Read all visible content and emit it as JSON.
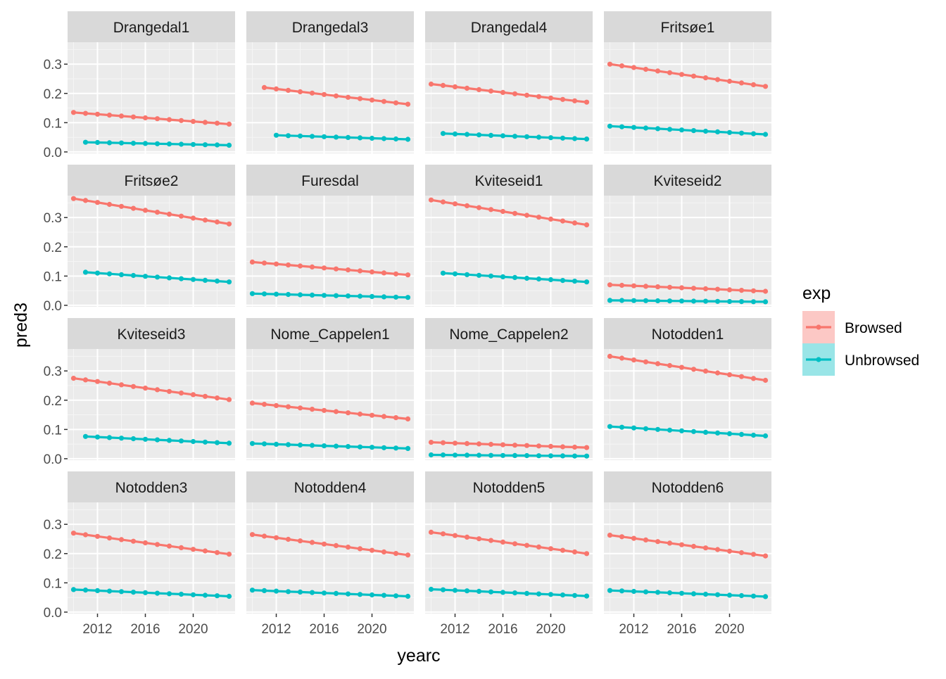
{
  "chart_data": {
    "type": "line",
    "facet_layout": "4x4 grid",
    "xlabel": "yearc",
    "ylabel": "pred3",
    "xlim": [
      2009.5,
      2023.5
    ],
    "ylim": [
      -0.005,
      0.375
    ],
    "xticks": [
      2012,
      2016,
      2020
    ],
    "yticks": [
      0.0,
      0.1,
      0.2,
      0.3
    ],
    "ytick_labels": [
      "0.0",
      "0.1",
      "0.2",
      "0.3"
    ],
    "grid": true,
    "legend": {
      "title": "exp",
      "placement": "right",
      "entries": [
        {
          "label": "Browsed",
          "color": "#F8766D"
        },
        {
          "label": "Unbrowsed",
          "color": "#00BFC4"
        }
      ]
    },
    "panel_background": "#EBEBEB",
    "strip_background": "#D9D9D9",
    "panels": [
      {
        "name": "Drangedal1",
        "series": [
          {
            "name": "Browsed",
            "x_start": 2010,
            "x_end": 2023,
            "y_start": 0.135,
            "y_end": 0.095
          },
          {
            "name": "Unbrowsed",
            "x_start": 2011,
            "x_end": 2023,
            "y_start": 0.033,
            "y_end": 0.023
          }
        ]
      },
      {
        "name": "Drangedal3",
        "series": [
          {
            "name": "Browsed",
            "x_start": 2011,
            "x_end": 2023,
            "y_start": 0.22,
            "y_end": 0.163
          },
          {
            "name": "Unbrowsed",
            "x_start": 2012,
            "x_end": 2023,
            "y_start": 0.057,
            "y_end": 0.043
          }
        ]
      },
      {
        "name": "Drangedal4",
        "series": [
          {
            "name": "Browsed",
            "x_start": 2010,
            "x_end": 2023,
            "y_start": 0.232,
            "y_end": 0.17
          },
          {
            "name": "Unbrowsed",
            "x_start": 2011,
            "x_end": 2023,
            "y_start": 0.063,
            "y_end": 0.044
          }
        ]
      },
      {
        "name": "Fritsøe1",
        "series": [
          {
            "name": "Browsed",
            "x_start": 2010,
            "x_end": 2023,
            "y_start": 0.3,
            "y_end": 0.224
          },
          {
            "name": "Unbrowsed",
            "x_start": 2010,
            "x_end": 2023,
            "y_start": 0.088,
            "y_end": 0.06
          }
        ]
      },
      {
        "name": "Fritsøe2",
        "series": [
          {
            "name": "Browsed",
            "x_start": 2010,
            "x_end": 2023,
            "y_start": 0.365,
            "y_end": 0.278
          },
          {
            "name": "Unbrowsed",
            "x_start": 2011,
            "x_end": 2023,
            "y_start": 0.113,
            "y_end": 0.08
          }
        ]
      },
      {
        "name": "Furesdal",
        "series": [
          {
            "name": "Browsed",
            "x_start": 2010,
            "x_end": 2023,
            "y_start": 0.148,
            "y_end": 0.104
          },
          {
            "name": "Unbrowsed",
            "x_start": 2010,
            "x_end": 2023,
            "y_start": 0.04,
            "y_end": 0.027
          }
        ]
      },
      {
        "name": "Kviteseid1",
        "series": [
          {
            "name": "Browsed",
            "x_start": 2010,
            "x_end": 2023,
            "y_start": 0.36,
            "y_end": 0.275
          },
          {
            "name": "Unbrowsed",
            "x_start": 2011,
            "x_end": 2023,
            "y_start": 0.11,
            "y_end": 0.08
          }
        ]
      },
      {
        "name": "Kviteseid2",
        "series": [
          {
            "name": "Browsed",
            "x_start": 2010,
            "x_end": 2023,
            "y_start": 0.07,
            "y_end": 0.048
          },
          {
            "name": "Unbrowsed",
            "x_start": 2010,
            "x_end": 2023,
            "y_start": 0.017,
            "y_end": 0.012
          }
        ]
      },
      {
        "name": "Kviteseid3",
        "series": [
          {
            "name": "Browsed",
            "x_start": 2010,
            "x_end": 2023,
            "y_start": 0.275,
            "y_end": 0.202
          },
          {
            "name": "Unbrowsed",
            "x_start": 2011,
            "x_end": 2023,
            "y_start": 0.076,
            "y_end": 0.053
          }
        ]
      },
      {
        "name": "Nome_Cappelen1",
        "series": [
          {
            "name": "Browsed",
            "x_start": 2010,
            "x_end": 2023,
            "y_start": 0.19,
            "y_end": 0.136
          },
          {
            "name": "Unbrowsed",
            "x_start": 2010,
            "x_end": 2023,
            "y_start": 0.052,
            "y_end": 0.035
          }
        ]
      },
      {
        "name": "Nome_Cappelen2",
        "series": [
          {
            "name": "Browsed",
            "x_start": 2010,
            "x_end": 2023,
            "y_start": 0.056,
            "y_end": 0.038
          },
          {
            "name": "Unbrowsed",
            "x_start": 2010,
            "x_end": 2023,
            "y_start": 0.013,
            "y_end": 0.009
          }
        ]
      },
      {
        "name": "Notodden1",
        "series": [
          {
            "name": "Browsed",
            "x_start": 2010,
            "x_end": 2023,
            "y_start": 0.35,
            "y_end": 0.268
          },
          {
            "name": "Unbrowsed",
            "x_start": 2010,
            "x_end": 2023,
            "y_start": 0.11,
            "y_end": 0.078
          }
        ]
      },
      {
        "name": "Notodden3",
        "series": [
          {
            "name": "Browsed",
            "x_start": 2010,
            "x_end": 2023,
            "y_start": 0.27,
            "y_end": 0.198
          },
          {
            "name": "Unbrowsed",
            "x_start": 2010,
            "x_end": 2023,
            "y_start": 0.077,
            "y_end": 0.054
          }
        ]
      },
      {
        "name": "Notodden4",
        "series": [
          {
            "name": "Browsed",
            "x_start": 2010,
            "x_end": 2023,
            "y_start": 0.265,
            "y_end": 0.195
          },
          {
            "name": "Unbrowsed",
            "x_start": 2010,
            "x_end": 2023,
            "y_start": 0.075,
            "y_end": 0.054
          }
        ]
      },
      {
        "name": "Notodden5",
        "series": [
          {
            "name": "Browsed",
            "x_start": 2010,
            "x_end": 2023,
            "y_start": 0.273,
            "y_end": 0.2
          },
          {
            "name": "Unbrowsed",
            "x_start": 2010,
            "x_end": 2023,
            "y_start": 0.078,
            "y_end": 0.055
          }
        ]
      },
      {
        "name": "Notodden6",
        "series": [
          {
            "name": "Browsed",
            "x_start": 2010,
            "x_end": 2023,
            "y_start": 0.263,
            "y_end": 0.192
          },
          {
            "name": "Unbrowsed",
            "x_start": 2010,
            "x_end": 2023,
            "y_start": 0.074,
            "y_end": 0.053
          }
        ]
      }
    ]
  }
}
